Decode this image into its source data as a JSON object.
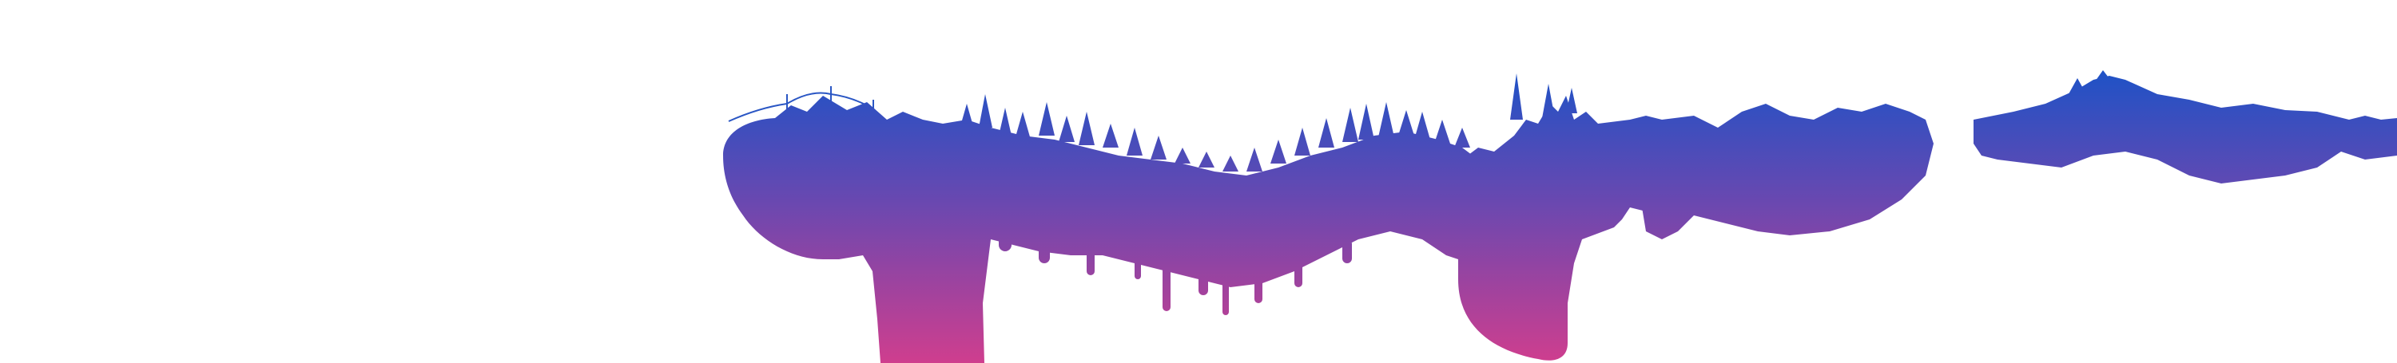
{
  "artwork": {
    "subject": "forest-silhouette-banner",
    "background_color": "#ffffff",
    "gradient": {
      "top_color": "#1f52c6",
      "mid_color": "#6a48b0",
      "bottom_color": "#cf3e8e"
    }
  }
}
